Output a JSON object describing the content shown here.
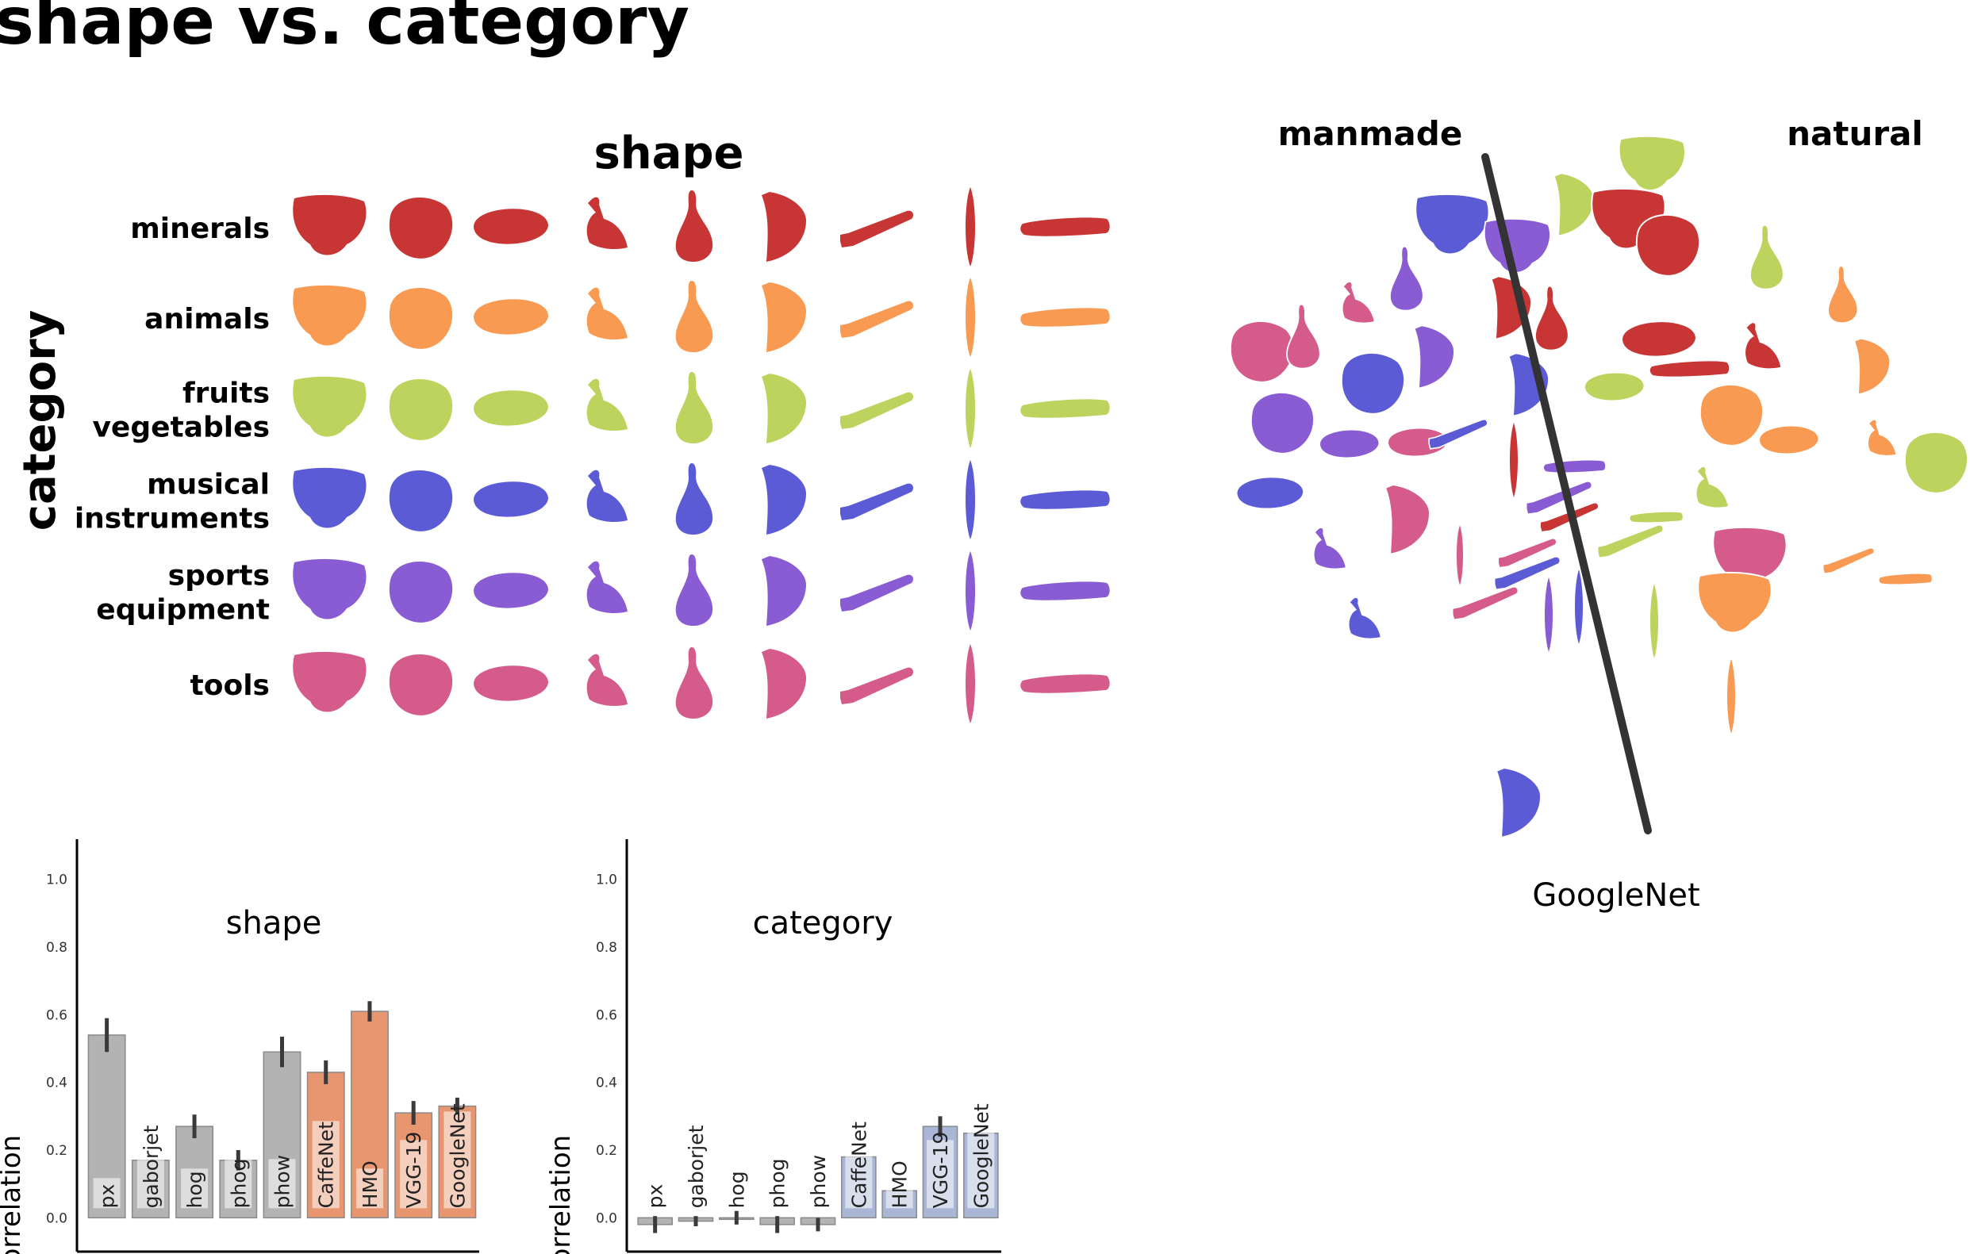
{
  "title": "shape vs. category",
  "grid": {
    "col_header": "shape",
    "row_header": "category",
    "rows": [
      {
        "label_lines": [
          "minerals"
        ],
        "color": "#c73535"
      },
      {
        "label_lines": [
          "animals"
        ],
        "color": "#f89a52"
      },
      {
        "label_lines": [
          "fruits",
          "vegetables"
        ],
        "color": "#bcd45d"
      },
      {
        "label_lines": [
          "musical",
          "instruments"
        ],
        "color": "#5b5bd6"
      },
      {
        "label_lines": [
          "sports",
          "equipment"
        ],
        "color": "#8a5cd4"
      },
      {
        "label_lines": [
          "tools"
        ],
        "color": "#d45b8a"
      }
    ],
    "shape_icons": [
      "blob-wide",
      "blob-round",
      "oval",
      "hammer",
      "bulb",
      "wedge",
      "stick",
      "spindle",
      "bar"
    ]
  },
  "embedding": {
    "label_left": "manmade",
    "label_right": "natural",
    "caption": "GoogleNet"
  },
  "chart_data": [
    {
      "type": "bar",
      "title": "shape",
      "xlabel": "",
      "ylabel": "correlation",
      "ylim": [
        -0.1,
        1.1
      ],
      "yticks": [
        "0.0",
        "0.2",
        "0.4",
        "0.6",
        "0.8",
        "1.0"
      ],
      "categories": [
        "px",
        "gaborjet",
        "hog",
        "phog",
        "phow",
        "CaffeNet",
        "HMO",
        "VGG-19",
        "GoogleNet"
      ],
      "values": [
        0.54,
        0.17,
        0.27,
        0.17,
        0.49,
        0.43,
        0.61,
        0.31,
        0.33
      ],
      "errors": [
        0.05,
        0.0,
        0.035,
        0.03,
        0.045,
        0.035,
        0.03,
        0.035,
        0.025
      ],
      "colors": [
        "#b3b3b3",
        "#b3b3b3",
        "#b3b3b3",
        "#b3b3b3",
        "#b3b3b3",
        "#e8966f",
        "#e8966f",
        "#e8966f",
        "#e8966f"
      ]
    },
    {
      "type": "bar",
      "title": "category",
      "xlabel": "",
      "ylabel": "correlation",
      "ylim": [
        -0.1,
        1.1
      ],
      "yticks": [
        "0.0",
        "0.2",
        "0.4",
        "0.6",
        "0.8",
        "1.0"
      ],
      "categories": [
        "px",
        "gaborjet",
        "hog",
        "phog",
        "phow",
        "CaffeNet",
        "HMO",
        "VGG-19",
        "GoogleNet"
      ],
      "values": [
        -0.02,
        -0.01,
        0.0,
        -0.02,
        -0.02,
        0.18,
        0.08,
        0.27,
        0.25
      ],
      "errors": [
        0.025,
        0.015,
        0.02,
        0.025,
        0.02,
        0.0,
        0.0,
        0.03,
        0.0
      ],
      "colors": [
        "#b3b3b3",
        "#b3b3b3",
        "#b3b3b3",
        "#b3b3b3",
        "#b3b3b3",
        "#a9b6d6",
        "#a9b6d6",
        "#a9b6d6",
        "#a9b6d6"
      ]
    }
  ]
}
